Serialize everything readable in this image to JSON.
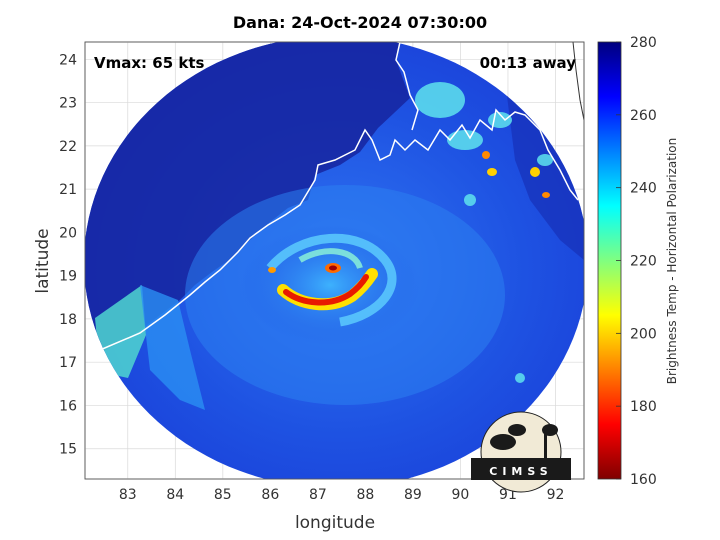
{
  "title": "Dana: 24-Oct-2024 07:30:00",
  "vmax_label": "Vmax: 65 kts",
  "time_away_label": "00:13 away",
  "x_axis": {
    "label": "longitude",
    "min": 82.1,
    "max": 92.6,
    "ticks": [
      "83",
      "84",
      "85",
      "86",
      "87",
      "88",
      "89",
      "90",
      "91",
      "92"
    ]
  },
  "y_axis": {
    "label": "latitude",
    "min": 14.3,
    "max": 24.4,
    "ticks": [
      "15",
      "16",
      "17",
      "18",
      "19",
      "20",
      "21",
      "22",
      "23",
      "24"
    ]
  },
  "colorbar": {
    "label": "Brightness Temp - Horizontal Polarization",
    "min": 160,
    "max": 280,
    "ticks": [
      "160",
      "180",
      "200",
      "220",
      "240",
      "260",
      "280"
    ],
    "colors": [
      "#7f0000",
      "#ff0000",
      "#ff8000",
      "#ffff00",
      "#80ff80",
      "#00ffff",
      "#0080ff",
      "#0000ff",
      "#00007f"
    ]
  },
  "logo_text": "CIMSS",
  "map": {
    "storm_center": {
      "lon": 87.1,
      "lat": 18.9
    },
    "swath_center": {
      "lon": 87.4,
      "lat": 19.2
    },
    "colors": {
      "background_tb": "#1a3ed8",
      "ocean_low": "#2a6cf0",
      "land_edge": "#0c1b8c",
      "eye": "#b00000",
      "eyewall": "#ff3300",
      "rain_band": "#ffe000",
      "coast": "#ffffff",
      "grid": "#d9d9d9"
    }
  }
}
